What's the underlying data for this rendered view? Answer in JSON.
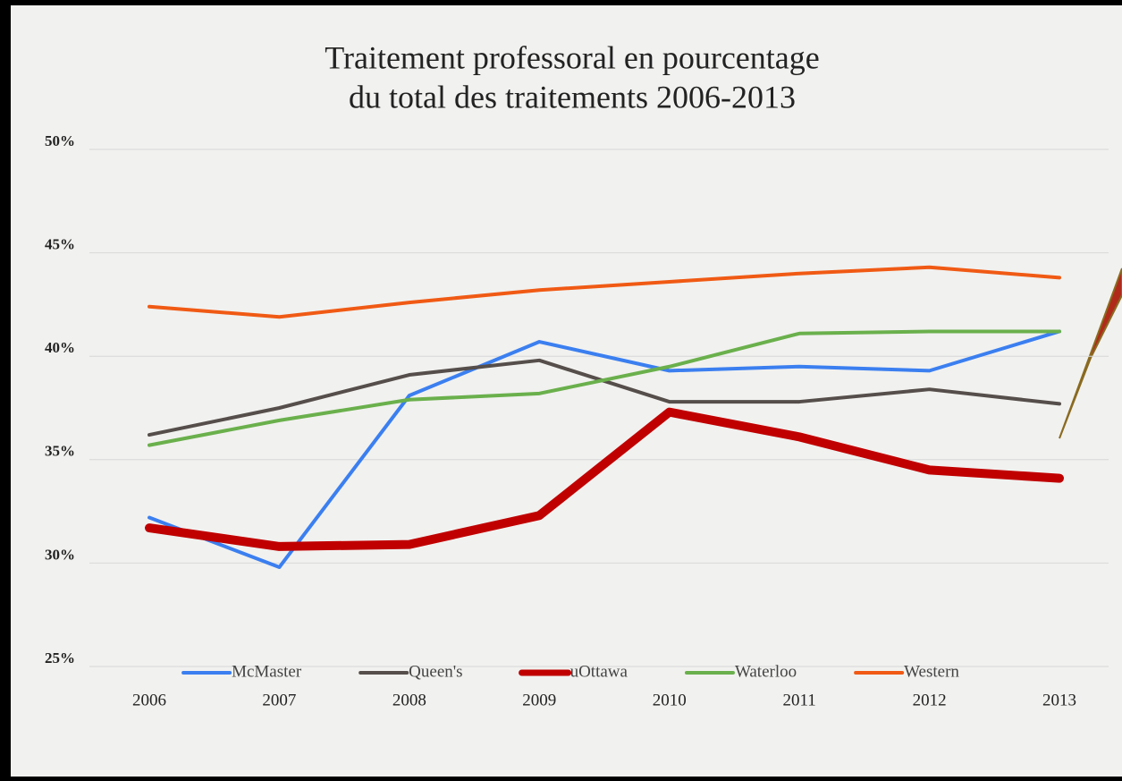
{
  "chart_data": {
    "type": "line",
    "title": [
      "Traitement professoral en pourcentage",
      "du total des traitements 2006-2013"
    ],
    "categories": [
      "2006",
      "2007",
      "2008",
      "2009",
      "2010",
      "2011",
      "2012",
      "2013"
    ],
    "series": [
      {
        "name": "McMaster",
        "color": "#3b7ff0",
        "width": 4,
        "values": [
          32.2,
          29.8,
          38.1,
          40.7,
          39.3,
          39.5,
          39.3,
          41.2
        ]
      },
      {
        "name": "Queen's",
        "color": "#554e4a",
        "width": 4,
        "values": [
          36.2,
          37.5,
          39.1,
          39.8,
          37.8,
          37.8,
          38.4,
          37.7
        ]
      },
      {
        "name": "uOttawa",
        "color": "#c00000",
        "width": 10,
        "values": [
          31.7,
          30.8,
          30.9,
          32.3,
          37.3,
          36.1,
          34.5,
          34.1
        ]
      },
      {
        "name": "Waterloo",
        "color": "#6ab04c",
        "width": 4,
        "values": [
          35.7,
          36.9,
          37.9,
          38.2,
          39.5,
          41.1,
          41.2,
          41.2
        ]
      },
      {
        "name": "Western",
        "color": "#f05a14",
        "width": 4,
        "values": [
          42.4,
          41.9,
          42.6,
          43.2,
          43.6,
          44.0,
          44.3,
          43.8
        ]
      }
    ],
    "ylim": [
      25,
      50
    ],
    "yticks": [
      {
        "value": 25,
        "label": "25%"
      },
      {
        "value": 30,
        "label": "30%"
      },
      {
        "value": 35,
        "label": "35%"
      },
      {
        "value": 40,
        "label": "40%"
      },
      {
        "value": 45,
        "label": "45%"
      },
      {
        "value": 50,
        "label": "50%"
      }
    ],
    "grid": true
  }
}
